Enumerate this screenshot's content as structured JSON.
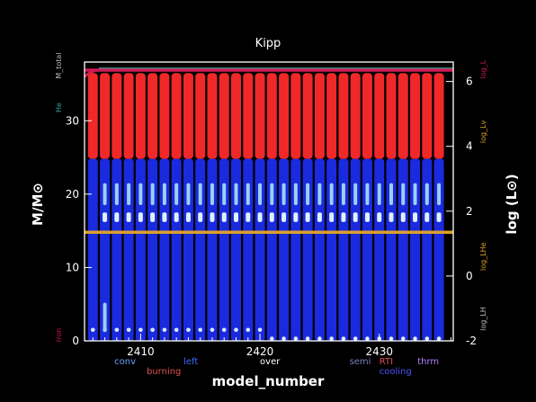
{
  "chart_data": {
    "type": "kippenhahn",
    "title": "Kipp",
    "xlabel": "model_number",
    "ylabel_left": "M/M⊙",
    "ylabel_right": "log (L⊙)",
    "xlim": [
      2405.3,
      2436.2
    ],
    "ylim_left": [
      0,
      38
    ],
    "ylim_right": [
      -2,
      6.6
    ],
    "xticks": [
      2410,
      2420,
      2430
    ],
    "yticks_left": [
      0,
      10,
      20,
      30
    ],
    "yticks_right": [
      -2,
      0,
      2,
      4,
      6
    ],
    "models": [
      2406,
      2407,
      2408,
      2409,
      2410,
      2411,
      2412,
      2413,
      2414,
      2415,
      2416,
      2417,
      2418,
      2419,
      2420,
      2421,
      2422,
      2423,
      2424,
      2425,
      2426,
      2427,
      2428,
      2429,
      2430,
      2431,
      2432,
      2433,
      2434,
      2435
    ],
    "burning_zone": [
      24.8,
      36.5
    ],
    "mixing_zone": [
      0,
      24.8
    ],
    "total_mass": 36.9,
    "log_L_series": [
      {
        "name": "log_L",
        "color": "#cc1a55",
        "value": 6.35
      },
      {
        "name": "log_Lneu",
        "color": "#d9a02a",
        "value": 1.35
      }
    ],
    "side_labels": {
      "left": [
        {
          "text": "M_total",
          "color": "#bbbbbb",
          "y": 37.5
        },
        {
          "text": "He",
          "color": "#3aa0a0",
          "y": 31.8
        },
        {
          "text": "Iron",
          "color": "#cc1a55",
          "y": 0.8
        }
      ],
      "right": [
        {
          "text": "log_L",
          "color": "#cc1a55",
          "y": 37.0
        },
        {
          "text": "log_Lν",
          "color": "#d9a02a",
          "y": 28.5
        },
        {
          "text": "log_LHe",
          "color": "#d9a02a",
          "y": 11.5
        },
        {
          "text": "log_LH",
          "color": "#bbbbbb",
          "y": 3.0
        }
      ]
    },
    "legend": [
      {
        "text": "conv",
        "color": "#6aa0ff",
        "row": 0,
        "x": 2407.8
      },
      {
        "text": "burning",
        "color": "#e05050",
        "row": 1,
        "x": 2410.5
      },
      {
        "text": "left",
        "color": "#3a6aff",
        "row": 0,
        "x": 2413.6
      },
      {
        "text": "over",
        "color": "#ffffff",
        "row": 0,
        "x": 2420.0
      },
      {
        "text": "semi",
        "color": "#8080c0",
        "row": 0,
        "x": 2427.5
      },
      {
        "text": "RTI",
        "color": "#e05050",
        "row": 0,
        "x": 2430.0
      },
      {
        "text": "cooling",
        "color": "#5050ff",
        "row": 1,
        "x": 2430.0
      },
      {
        "text": "thrm",
        "color": "#b080ff",
        "row": 0,
        "x": 2433.2
      }
    ]
  }
}
